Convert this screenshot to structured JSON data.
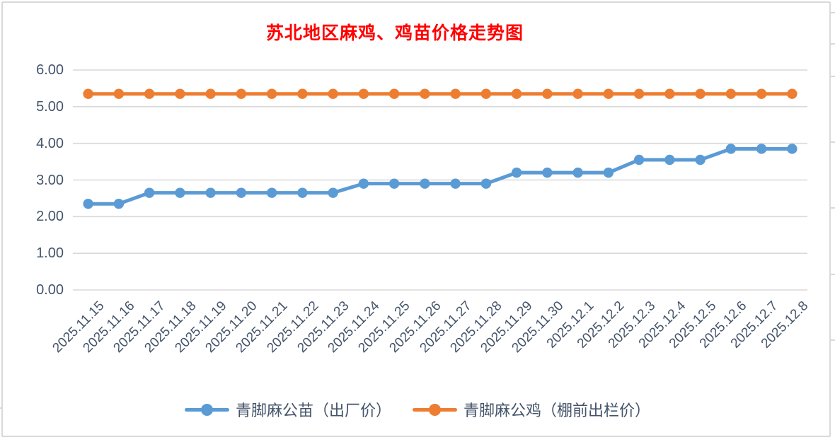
{
  "chart_data": {
    "type": "line",
    "title": "苏北地区麻鸡、鸡苗价格走势图",
    "title_color": "#ff0000",
    "categories": [
      "2025.11.15",
      "2025.11.16",
      "2025.11.17",
      "2025.11.18",
      "2025.11.19",
      "2025.11.20",
      "2025.11.21",
      "2025.11.22",
      "2025.11.23",
      "2025.11.24",
      "2025.11.25",
      "2025.11.26",
      "2025.11.27",
      "2025.11.28",
      "2025.11.29",
      "2025.11.30",
      "2025.12.1",
      "2025.12.2",
      "2025.12.3",
      "2025.12.4",
      "2025.12.5",
      "2025.12.6",
      "2025.12.7",
      "2025.12.8"
    ],
    "series": [
      {
        "name": "青脚麻公苗（出厂价）",
        "color": "#5b9bd5",
        "values": [
          2.35,
          2.35,
          2.65,
          2.65,
          2.65,
          2.65,
          2.65,
          2.65,
          2.65,
          2.9,
          2.9,
          2.9,
          2.9,
          2.9,
          3.2,
          3.2,
          3.2,
          3.2,
          3.55,
          3.55,
          3.55,
          3.85,
          3.85,
          3.85
        ]
      },
      {
        "name": "青脚麻公鸡（棚前出栏价）",
        "color": "#ed7d31",
        "values": [
          5.35,
          5.35,
          5.35,
          5.35,
          5.35,
          5.35,
          5.35,
          5.35,
          5.35,
          5.35,
          5.35,
          5.35,
          5.35,
          5.35,
          5.35,
          5.35,
          5.35,
          5.35,
          5.35,
          5.35,
          5.35,
          5.35,
          5.35,
          5.35
        ]
      }
    ],
    "ylim": [
      0,
      6
    ],
    "ytick_step": 1,
    "ytick_labels": [
      "0.00",
      "1.00",
      "2.00",
      "3.00",
      "4.00",
      "5.00",
      "6.00"
    ],
    "grid": true,
    "gridline_color": "#d9d9d9",
    "axis_text_color": "#44546a",
    "legend_position": "bottom"
  }
}
